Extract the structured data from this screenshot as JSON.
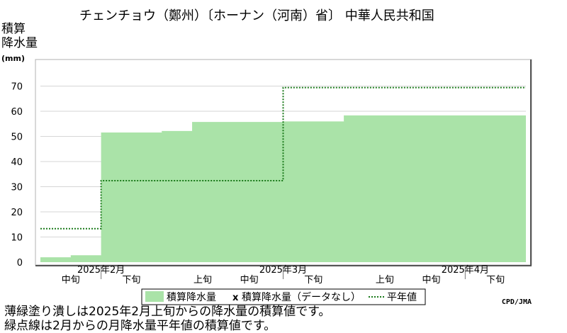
{
  "chart_data": {
    "type": "area",
    "title": "チェンチョウ（鄭州）〔ホーナン（河南）省〕 中華人民共和国",
    "ylabel": [
      "積算",
      "降水量",
      "(mm)"
    ],
    "ylim": [
      0,
      80
    ],
    "yticks": [
      0,
      10,
      20,
      30,
      40,
      50,
      60,
      70
    ],
    "grid": true,
    "months": [
      "2025年2月",
      "2025年3月",
      "2025年4月"
    ],
    "dekads": [
      "上旬",
      "中旬",
      "下旬"
    ],
    "period_labels": [
      "中旬",
      "下旬",
      "上旬",
      "中旬",
      "下旬",
      "上旬",
      "中旬",
      "下旬"
    ],
    "x_start_dekad": 1,
    "x_end_dekad": 9,
    "accumulated": {
      "name": "積算降水量",
      "color": "#aae3a8",
      "steps": [
        {
          "from": 1.0,
          "to": 1.5,
          "value": 1.8
        },
        {
          "from": 1.5,
          "to": 2.0,
          "value": 2.6
        },
        {
          "from": 2.0,
          "to": 3.0,
          "value": 51.4
        },
        {
          "from": 3.0,
          "to": 3.5,
          "value": 52.0
        },
        {
          "from": 3.5,
          "to": 5.0,
          "value": 55.6
        },
        {
          "from": 5.0,
          "to": 6.0,
          "value": 55.8
        },
        {
          "from": 6.0,
          "to": 9.0,
          "value": 58.2
        }
      ]
    },
    "normal": {
      "name": "平年値",
      "color": "#1a7a1a",
      "steps": [
        {
          "from": 1.0,
          "to": 2.0,
          "value": 13.3
        },
        {
          "from": 2.0,
          "to": 5.0,
          "value": 32.4
        },
        {
          "from": 5.0,
          "to": 9.0,
          "value": 69.4
        }
      ]
    },
    "legend": {
      "placement": "bottom",
      "items": [
        {
          "symbol": "swatch",
          "label": "積算降水量"
        },
        {
          "symbol": "x",
          "label": "積算降水量（データなし）"
        },
        {
          "symbol": "dots",
          "label": "平年値"
        }
      ]
    }
  },
  "notes": {
    "line1": "薄緑塗り潰しは2025年2月上旬からの降水量の積算値です。",
    "line2": "緑点線は2月からの月降水量平年値の積算値です。",
    "credit": "CPD/JMA"
  }
}
